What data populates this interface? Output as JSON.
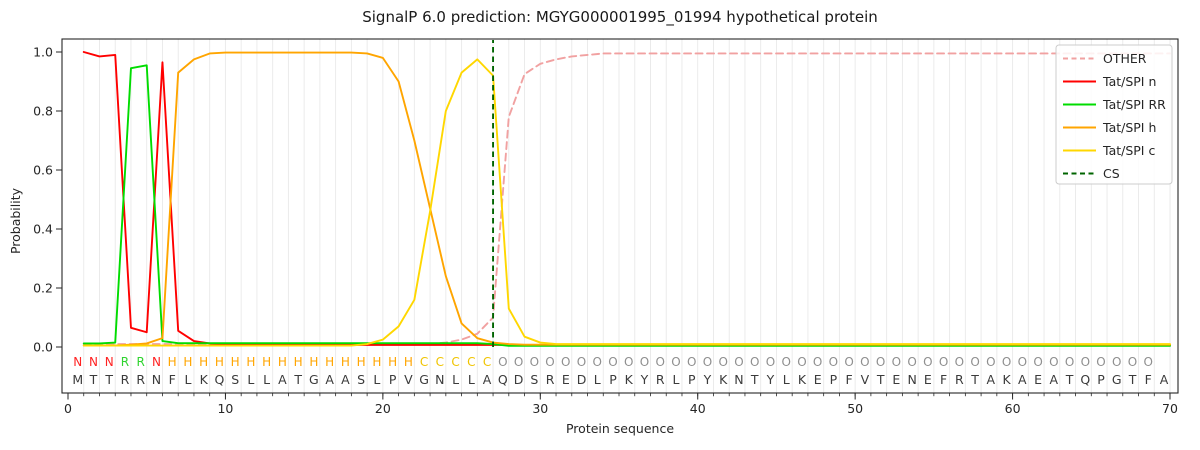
{
  "title": "SignalP 6.0 prediction: MGYG000001995_01994 hypothetical protein",
  "axes": {
    "xlabel": "Protein sequence",
    "ylabel": "Probability",
    "x_ticks": [
      0,
      10,
      20,
      30,
      40,
      50,
      60,
      70
    ],
    "y_ticks": [
      "0.0",
      "0.2",
      "0.4",
      "0.6",
      "0.8",
      "1.0"
    ],
    "xlim": [
      0,
      71
    ],
    "ylim_drawn": [
      0,
      1.0
    ],
    "grid": "light vertical gridline at every residue position"
  },
  "legend": {
    "position": "upper right",
    "entries": [
      "OTHER",
      "Tat/SPI n",
      "Tat/SPI RR",
      "Tat/SPI h",
      "Tat/SPI c",
      "CS"
    ]
  },
  "chart_data": {
    "type": "line",
    "x": [
      1,
      2,
      3,
      4,
      5,
      6,
      7,
      8,
      9,
      10,
      11,
      12,
      13,
      14,
      15,
      16,
      17,
      18,
      19,
      20,
      21,
      22,
      23,
      24,
      25,
      26,
      27,
      28,
      29,
      30,
      31,
      32,
      33,
      34,
      35,
      36,
      37,
      38,
      39,
      40,
      41,
      42,
      43,
      44,
      45,
      46,
      47,
      48,
      49,
      50,
      51,
      52,
      53,
      54,
      55,
      56,
      57,
      58,
      59,
      60,
      61,
      62,
      63,
      64,
      65,
      66,
      67,
      68,
      69,
      70
    ],
    "series": [
      {
        "name": "OTHER",
        "color": "#f1a1a1",
        "dash": true,
        "values": [
          0.01,
          0.01,
          0.01,
          0.01,
          0.01,
          0.01,
          0.01,
          0.01,
          0.01,
          0.01,
          0.01,
          0.01,
          0.01,
          0.01,
          0.01,
          0.01,
          0.01,
          0.01,
          0.01,
          0.01,
          0.01,
          0.01,
          0.01,
          0.015,
          0.025,
          0.045,
          0.1,
          0.78,
          0.925,
          0.96,
          0.975,
          0.985,
          0.99,
          0.995,
          0.995,
          0.995,
          0.995,
          0.995,
          0.995,
          0.995,
          0.995,
          0.995,
          0.995,
          0.995,
          0.995,
          0.995,
          0.995,
          0.995,
          0.995,
          0.995,
          0.995,
          0.995,
          0.995,
          0.995,
          0.995,
          0.995,
          0.995,
          0.995,
          0.995,
          0.995,
          0.995,
          0.995,
          0.995,
          0.995,
          0.995,
          0.995,
          0.995,
          0.995,
          0.995,
          0.995
        ]
      },
      {
        "name": "Tat/SPI n",
        "color": "#ff0000",
        "dash": false,
        "values": [
          1.0,
          0.985,
          0.99,
          0.065,
          0.05,
          0.965,
          0.055,
          0.02,
          0.012,
          0.008,
          0.007,
          0.007,
          0.007,
          0.007,
          0.007,
          0.007,
          0.007,
          0.007,
          0.007,
          0.007,
          0.007,
          0.007,
          0.007,
          0.007,
          0.007,
          0.007,
          0.007,
          0.007,
          0.007,
          0.007,
          0.007,
          0.007,
          0.007,
          0.007,
          0.007,
          0.007,
          0.007,
          0.007,
          0.007,
          0.007,
          0.007,
          0.007,
          0.007,
          0.007,
          0.007,
          0.007,
          0.007,
          0.007,
          0.007,
          0.007,
          0.007,
          0.007,
          0.007,
          0.007,
          0.007,
          0.007,
          0.007,
          0.007,
          0.007,
          0.007,
          0.007,
          0.007,
          0.007,
          0.007,
          0.007,
          0.007,
          0.007,
          0.007,
          0.007,
          0.007
        ]
      },
      {
        "name": "Tat/SPI RR",
        "color": "#00dc00",
        "dash": false,
        "values": [
          0.012,
          0.012,
          0.015,
          0.945,
          0.955,
          0.02,
          0.013,
          0.013,
          0.013,
          0.013,
          0.013,
          0.013,
          0.013,
          0.013,
          0.013,
          0.013,
          0.013,
          0.013,
          0.013,
          0.013,
          0.013,
          0.013,
          0.013,
          0.013,
          0.013,
          0.013,
          0.01,
          0.004,
          0.004,
          0.004,
          0.004,
          0.004,
          0.004,
          0.004,
          0.004,
          0.004,
          0.004,
          0.004,
          0.004,
          0.004,
          0.004,
          0.004,
          0.004,
          0.004,
          0.004,
          0.004,
          0.004,
          0.004,
          0.004,
          0.004,
          0.004,
          0.004,
          0.004,
          0.004,
          0.004,
          0.004,
          0.004,
          0.004,
          0.004,
          0.004,
          0.004,
          0.004,
          0.004,
          0.004,
          0.004,
          0.004,
          0.004,
          0.004,
          0.004,
          0.004
        ]
      },
      {
        "name": "Tat/SPI h",
        "color": "#ffa500",
        "dash": false,
        "values": [
          0.005,
          0.005,
          0.005,
          0.008,
          0.012,
          0.03,
          0.93,
          0.975,
          0.995,
          0.998,
          0.998,
          0.998,
          0.998,
          0.998,
          0.998,
          0.998,
          0.998,
          0.998,
          0.995,
          0.98,
          0.9,
          0.7,
          0.47,
          0.24,
          0.08,
          0.03,
          0.015,
          0.01,
          0.008,
          0.008,
          0.008,
          0.008,
          0.008,
          0.008,
          0.008,
          0.008,
          0.008,
          0.008,
          0.008,
          0.008,
          0.008,
          0.008,
          0.008,
          0.008,
          0.008,
          0.008,
          0.008,
          0.008,
          0.008,
          0.008,
          0.008,
          0.008,
          0.008,
          0.008,
          0.008,
          0.008,
          0.008,
          0.008,
          0.008,
          0.008,
          0.008,
          0.008,
          0.008,
          0.008,
          0.008,
          0.008,
          0.008,
          0.008,
          0.008,
          0.008
        ]
      },
      {
        "name": "Tat/SPI c",
        "color": "#ffd700",
        "dash": false,
        "values": [
          0.005,
          0.005,
          0.005,
          0.005,
          0.005,
          0.005,
          0.005,
          0.005,
          0.005,
          0.005,
          0.005,
          0.005,
          0.005,
          0.005,
          0.005,
          0.005,
          0.005,
          0.005,
          0.01,
          0.025,
          0.07,
          0.16,
          0.46,
          0.8,
          0.93,
          0.975,
          0.92,
          0.13,
          0.035,
          0.015,
          0.01,
          0.01,
          0.01,
          0.01,
          0.01,
          0.01,
          0.01,
          0.01,
          0.01,
          0.01,
          0.01,
          0.01,
          0.01,
          0.01,
          0.01,
          0.01,
          0.01,
          0.01,
          0.01,
          0.01,
          0.01,
          0.01,
          0.01,
          0.01,
          0.01,
          0.01,
          0.01,
          0.01,
          0.01,
          0.01,
          0.01,
          0.01,
          0.01,
          0.01,
          0.01,
          0.01,
          0.01,
          0.01,
          0.01,
          0.01
        ]
      }
    ],
    "cs_marker": {
      "name": "CS",
      "x": 27,
      "color": "#006400",
      "dash": true
    },
    "annotations": {
      "region_labels": "NNNRRNHHHHHHHHHHHHHHHHCCCCCOOOOOOOOOOOOOOOOOOOOOOOOOOOOOOOOOOOOOOOOOO",
      "sequence": "MTTRRNFLKQSLLATGAASLPVGNLLAQDSREDLPKYRLPYKNTYLKEPFVTENEFRTAKAEATQPGTFA",
      "region_colors": {
        "N": "#ff2222",
        "R": "#2fd42f",
        "H": "#ffa500",
        "C": "#f0c400",
        "O": "#8f8f8f"
      },
      "sequence_color": "#3b3b3b"
    }
  }
}
